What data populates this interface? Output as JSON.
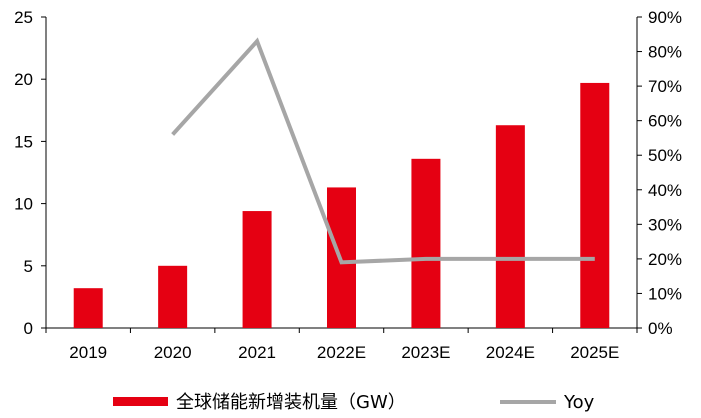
{
  "chart_data": {
    "type": "bar",
    "categories": [
      "2019",
      "2020",
      "2021",
      "2022E",
      "2023E",
      "2024E",
      "2025E"
    ],
    "series": [
      {
        "name": "全球储能新增装机量（GW）",
        "type": "bar",
        "axis": "left",
        "color": "#e50012",
        "values": [
          3.2,
          5.0,
          9.4,
          11.3,
          13.6,
          16.3,
          19.7
        ]
      },
      {
        "name": "Yoy",
        "type": "line",
        "axis": "right",
        "color": "#a6a6a6",
        "values": [
          null,
          56,
          83,
          19,
          20,
          20,
          20
        ]
      }
    ],
    "y_left": {
      "ylim": [
        0,
        25
      ],
      "ticks": [
        0,
        5,
        10,
        15,
        20,
        25
      ],
      "tick_labels": [
        "0",
        "5",
        "10",
        "15",
        "20",
        "25"
      ]
    },
    "y_right": {
      "ylim": [
        0,
        90
      ],
      "ticks": [
        0,
        10,
        20,
        30,
        40,
        50,
        60,
        70,
        80,
        90
      ],
      "tick_labels": [
        "0%",
        "10%",
        "20%",
        "30%",
        "40%",
        "50%",
        "60%",
        "70%",
        "80%",
        "90%"
      ]
    },
    "grid": false,
    "legend_position": "bottom"
  }
}
